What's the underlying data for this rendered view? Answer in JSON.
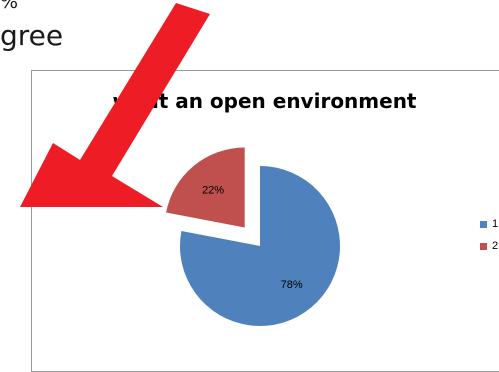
{
  "slide": {
    "top_text": "%",
    "bottom_text": "gree"
  },
  "colors": {
    "series_1": "#4f81bd",
    "series_2": "#c0504d",
    "arrow": "#ee1c25",
    "frame_border": "#9a9a9a"
  },
  "chart_data": {
    "type": "pie",
    "title": "want an open environment",
    "categories": [
      "1",
      "2"
    ],
    "values": [
      78,
      22
    ],
    "labels": [
      "78%",
      "22%"
    ],
    "exploded": [
      false,
      true
    ],
    "legend_position": "right"
  }
}
